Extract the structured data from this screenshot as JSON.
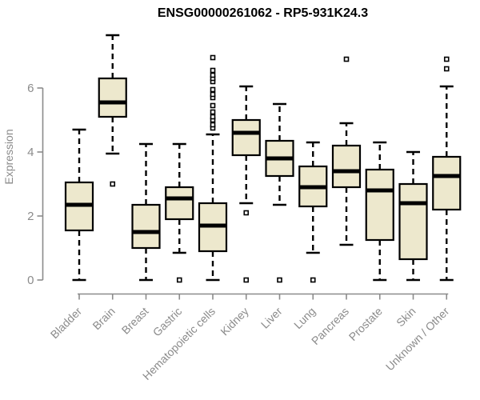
{
  "figure": {
    "background_color": "#ffffff"
  },
  "chart_data": {
    "type": "boxplot",
    "title": "ENSG00000261062 - RP5-931K24.3",
    "ylabel": "Expression",
    "xlabel": "",
    "yticks": [
      "0",
      "2",
      "4",
      "6"
    ],
    "ytick_values": [
      0,
      2,
      4,
      6
    ],
    "ylim": [
      0,
      7.7
    ],
    "grid": false,
    "legend": false,
    "colors": {
      "box_fill": "#EDE8CD",
      "box_border": "#000000",
      "median_line": "#000000",
      "whisker": "#000000",
      "outlier": "#000000",
      "axis": "#8B8B8B",
      "tick_label": "#8B8B8B",
      "title": "#000000"
    },
    "categories": [
      "Bladder",
      "Brain",
      "Breast",
      "Gastric",
      "Hematopoietic cells",
      "Kidney",
      "Liver",
      "Lung",
      "Pancreas",
      "Prostate",
      "Skin",
      "Unknown / Other"
    ],
    "series": [
      {
        "category": "Bladder",
        "whisker_low": 0.0,
        "q1": 1.55,
        "median": 2.35,
        "q3": 3.05,
        "whisker_high": 4.7,
        "outliers": []
      },
      {
        "category": "Brain",
        "whisker_low": 3.95,
        "q1": 5.1,
        "median": 5.55,
        "q3": 6.3,
        "whisker_high": 7.65,
        "outliers": [
          3.0
        ]
      },
      {
        "category": "Breast",
        "whisker_low": 0.0,
        "q1": 1.0,
        "median": 1.5,
        "q3": 2.35,
        "whisker_high": 4.25,
        "outliers": []
      },
      {
        "category": "Gastric",
        "whisker_low": 0.85,
        "q1": 1.9,
        "median": 2.55,
        "q3": 2.9,
        "whisker_high": 4.25,
        "outliers": [
          0.0
        ]
      },
      {
        "category": "Hematopoietic cells",
        "whisker_low": 0.0,
        "q1": 0.9,
        "median": 1.7,
        "q3": 2.4,
        "whisker_high": 4.55,
        "outliers": [
          4.75,
          4.85,
          5.0,
          5.1,
          5.25,
          5.45,
          5.7,
          5.8,
          5.95,
          6.2,
          6.3,
          6.4,
          6.55,
          6.95
        ]
      },
      {
        "category": "Kidney",
        "whisker_low": 2.4,
        "q1": 3.9,
        "median": 4.6,
        "q3": 5.0,
        "whisker_high": 6.05,
        "outliers": [
          2.1,
          0.0
        ]
      },
      {
        "category": "Liver",
        "whisker_low": 2.35,
        "q1": 3.25,
        "median": 3.8,
        "q3": 4.35,
        "whisker_high": 5.5,
        "outliers": [
          0.0
        ]
      },
      {
        "category": "Lung",
        "whisker_low": 0.85,
        "q1": 2.3,
        "median": 2.9,
        "q3": 3.55,
        "whisker_high": 4.3,
        "outliers": [
          0.0
        ]
      },
      {
        "category": "Pancreas",
        "whisker_low": 1.1,
        "q1": 2.9,
        "median": 3.4,
        "q3": 4.2,
        "whisker_high": 4.9,
        "outliers": [
          6.9
        ]
      },
      {
        "category": "Prostate",
        "whisker_low": 0.0,
        "q1": 1.25,
        "median": 2.8,
        "q3": 3.45,
        "whisker_high": 4.3,
        "outliers": []
      },
      {
        "category": "Skin",
        "whisker_low": 0.0,
        "q1": 0.65,
        "median": 2.4,
        "q3": 3.0,
        "whisker_high": 4.0,
        "outliers": []
      },
      {
        "category": "Unknown / Other",
        "whisker_low": 0.0,
        "q1": 2.2,
        "median": 3.25,
        "q3": 3.85,
        "whisker_high": 6.05,
        "outliers": [
          6.6,
          6.9
        ]
      }
    ]
  }
}
